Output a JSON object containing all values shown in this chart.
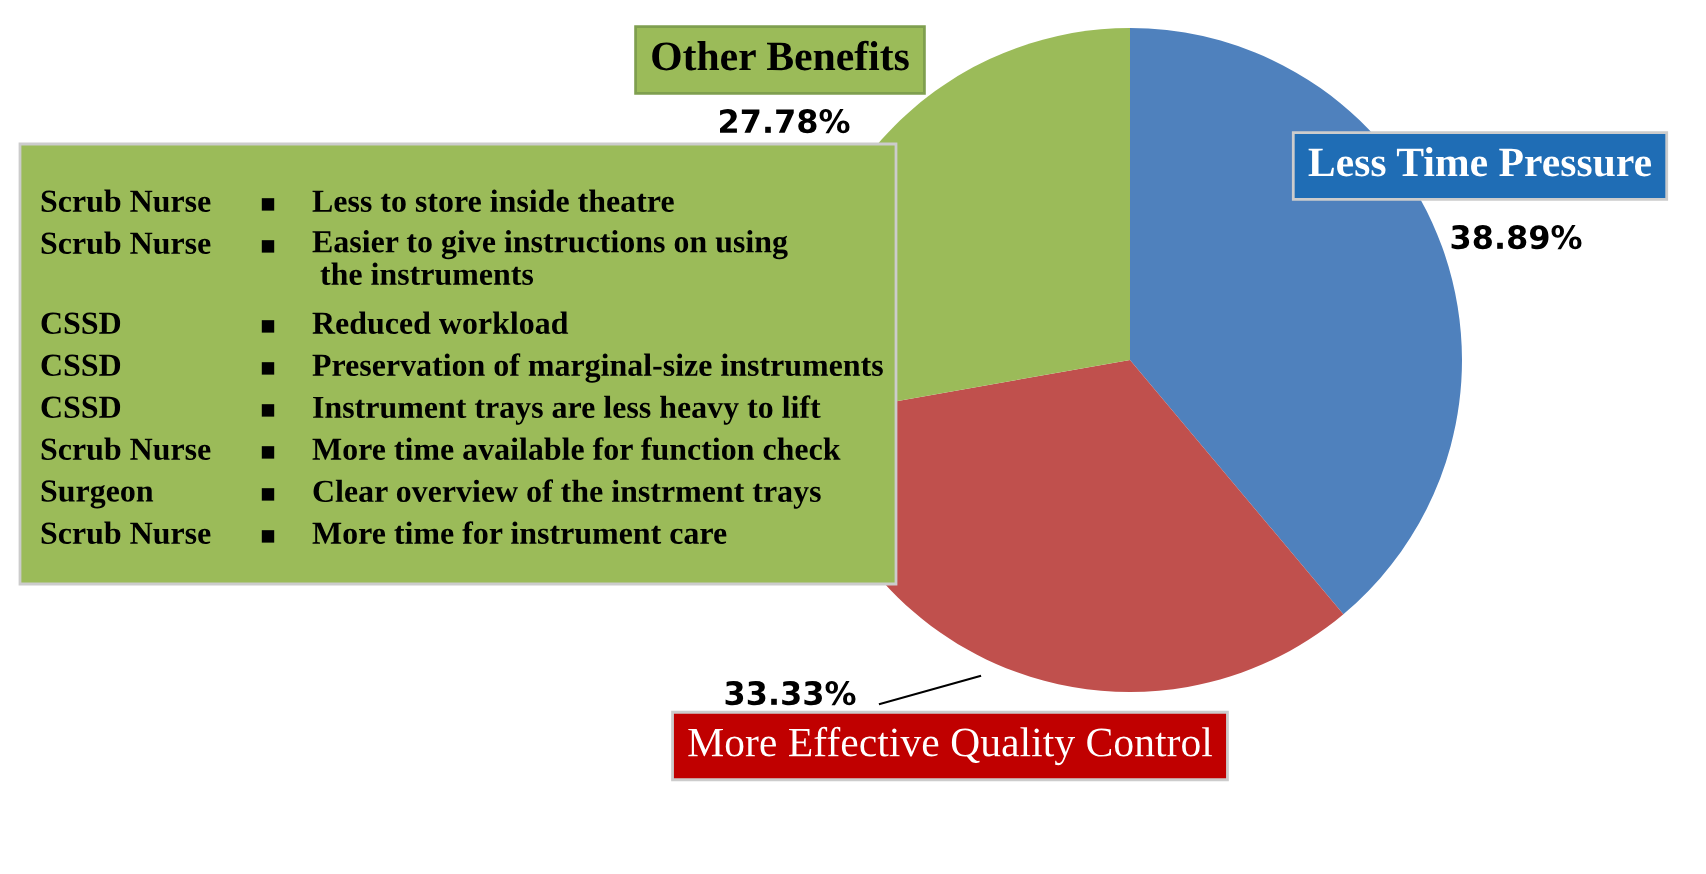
{
  "chart_data": {
    "type": "pie",
    "categories": [
      "Less Time Pressure",
      "More Effective Quality Control",
      "Other Benefits"
    ],
    "values": [
      38.89,
      33.33,
      27.78
    ],
    "colors": [
      "#4f81bd",
      "#c0504d",
      "#9bbb59"
    ],
    "value_labels": [
      "38.89%",
      "33.33%",
      "27.78%"
    ],
    "annotations": [
      "Scrub Nurse ▪ Less to store inside theatre",
      "Scrub Nurse ▪ Easier to give instructions on using\n the instruments",
      "CSSD ▪ Reduced workload",
      "CSSD ▪ Preservation of marginal-size instruments",
      "CSSD ▪ Instrument trays are less heavy to lift",
      "Scrub Nurse ▪ More time available for function check",
      "Surgeon ▪ Clear overview of the instrment trays",
      "Scrub Nurse ▪ More time for instrument care"
    ]
  }
}
